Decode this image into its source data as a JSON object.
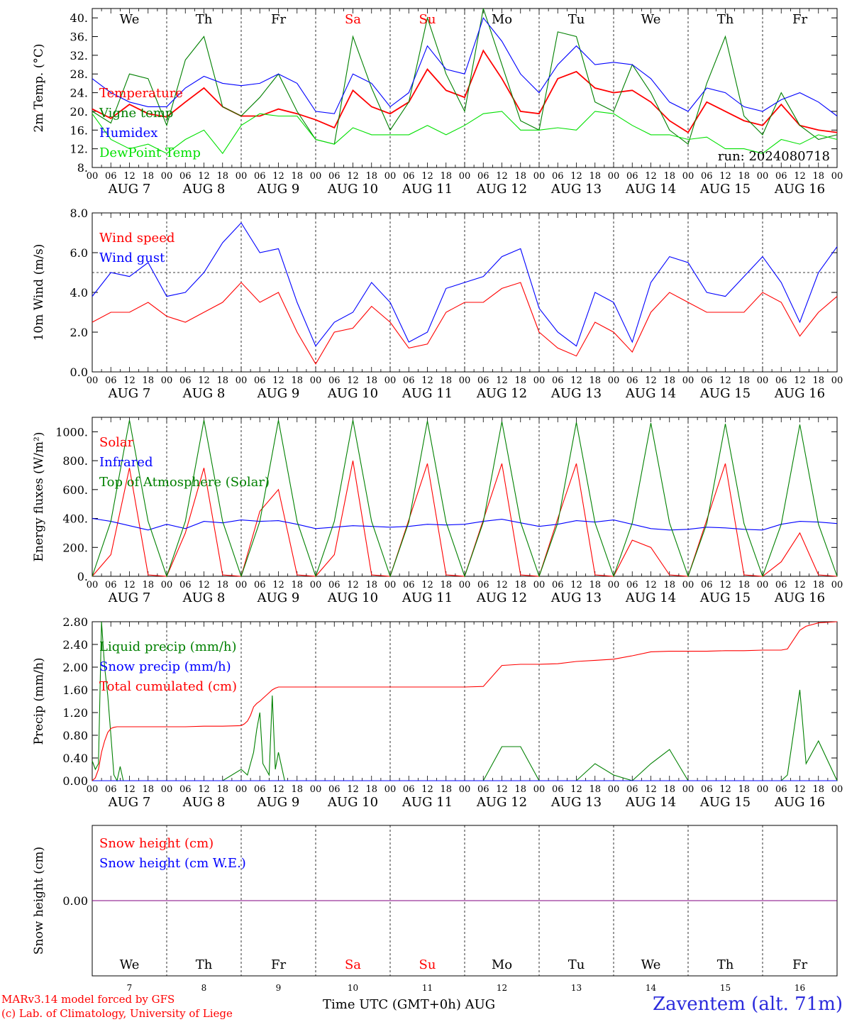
{
  "colors": {
    "red": "#ff0000",
    "blue": "#0000ff",
    "green": "#008000",
    "lightgreen": "#00e000",
    "purple": "#800080",
    "black": "#000000",
    "weekend": "#ff0000"
  },
  "days": [
    {
      "weekday": "We",
      "date": "AUG  7",
      "num": "7",
      "weekend": false
    },
    {
      "weekday": "Th",
      "date": "AUG  8",
      "num": "8",
      "weekend": false
    },
    {
      "weekday": "Fr",
      "date": "AUG  9",
      "num": "9",
      "weekend": false
    },
    {
      "weekday": "Sa",
      "date": "AUG 10",
      "num": "10",
      "weekend": true
    },
    {
      "weekday": "Su",
      "date": "AUG 11",
      "num": "11",
      "weekend": true
    },
    {
      "weekday": "Mo",
      "date": "AUG 12",
      "num": "12",
      "weekend": false
    },
    {
      "weekday": "Tu",
      "date": "AUG 13",
      "num": "13",
      "weekend": false
    },
    {
      "weekday": "We",
      "date": "AUG 14",
      "num": "14",
      "weekend": false
    },
    {
      "weekday": "Th",
      "date": "AUG 15",
      "num": "15",
      "weekend": false
    },
    {
      "weekday": "Fr",
      "date": "AUG 16",
      "num": "16",
      "weekend": false
    }
  ],
  "hour_ticks": [
    "00",
    "06",
    "12",
    "18"
  ],
  "hour_end": "00",
  "footer": {
    "credit_line1": "MARv3.14 model forced by GFS",
    "credit_line2": "(c) Lab. of Climatology, University of Liege",
    "xlabel": "Time UTC (GMT+0h) AUG",
    "station": "Zaventem (alt. 71m)"
  },
  "chart_data": [
    {
      "id": "temperature",
      "type": "line",
      "ylabel": "2m Temp. (°C)",
      "ylim": [
        8,
        42
      ],
      "yticks": [
        "8.",
        "12.",
        "16.",
        "20.",
        "24.",
        "28.",
        "32.",
        "36.",
        "40."
      ],
      "ytick_values": [
        8,
        12,
        16,
        20,
        24,
        28,
        32,
        36,
        40
      ],
      "annotation": "run: 2024080718",
      "legend": [
        "Temperature",
        "Vigne temp",
        "Humidex",
        "DewPoint Temp"
      ],
      "x_hours": [
        0,
        6,
        12,
        18,
        24,
        30,
        36,
        42,
        48,
        54,
        60,
        66,
        72,
        78,
        84,
        90,
        96,
        102,
        108,
        114,
        120,
        126,
        132,
        138,
        144,
        150,
        156,
        162,
        168,
        174,
        180,
        186,
        192,
        198,
        204,
        210,
        216,
        222,
        228,
        234,
        240
      ],
      "series": [
        {
          "name": "Temperature",
          "color": "#ff0000",
          "values": [
            20.5,
            18.5,
            21.5,
            19.5,
            18.8,
            22,
            25,
            21,
            19,
            19,
            20.5,
            19.5,
            18.2,
            16.5,
            24.5,
            21,
            19.5,
            22,
            29,
            24.5,
            23,
            33,
            27,
            20,
            19.5,
            27,
            28.5,
            25,
            24,
            24.5,
            22,
            18,
            15.5,
            22,
            20,
            18,
            17,
            21.5,
            17,
            16,
            15.5
          ]
        },
        {
          "name": "Vigne temp",
          "color": "#008000",
          "values": [
            20,
            17.5,
            28,
            27,
            17,
            31,
            36,
            21,
            19,
            23,
            28,
            20,
            14,
            13,
            36,
            25,
            16,
            22,
            40,
            28,
            20,
            42,
            30,
            18,
            16,
            37,
            36,
            22,
            20,
            30,
            24,
            16,
            13,
            26,
            36,
            19,
            15,
            24,
            17,
            14,
            15
          ]
        },
        {
          "name": "Humidex",
          "color": "#0000ff",
          "values": [
            27,
            24,
            22,
            21,
            21,
            25,
            27.5,
            26,
            25.5,
            26,
            28,
            26,
            20,
            19.5,
            28,
            26,
            21,
            24,
            34,
            29,
            28,
            40,
            35,
            28,
            24,
            30,
            34,
            30,
            30.5,
            30,
            27,
            22,
            20,
            25,
            24,
            21,
            20,
            22.5,
            24,
            22,
            19
          ]
        },
        {
          "name": "DewPoint Temp",
          "color": "#00e000",
          "values": [
            19.5,
            14,
            12,
            13,
            11,
            14,
            16,
            11,
            17,
            19.5,
            19,
            19,
            14,
            13,
            16.5,
            15,
            15,
            15,
            17,
            15,
            17,
            19.5,
            20,
            16,
            16,
            16.5,
            16,
            20,
            19.5,
            17,
            15,
            15,
            14,
            14.5,
            12,
            12,
            11,
            14,
            13,
            15,
            14
          ]
        }
      ]
    },
    {
      "id": "wind",
      "type": "line",
      "ylabel": "10m Wind (m/s)",
      "ylim": [
        0,
        8
      ],
      "yticks": [
        "0.0",
        "2.0",
        "4.0",
        "6.0",
        "8.0"
      ],
      "ytick_values": [
        0,
        2,
        4,
        6,
        8
      ],
      "reference_line": 5,
      "legend": [
        "Wind speed",
        "Wind gust"
      ],
      "x_hours": [
        0,
        6,
        12,
        18,
        24,
        30,
        36,
        42,
        48,
        54,
        60,
        66,
        72,
        78,
        84,
        90,
        96,
        102,
        108,
        114,
        120,
        126,
        132,
        138,
        144,
        150,
        156,
        162,
        168,
        174,
        180,
        186,
        192,
        198,
        204,
        210,
        216,
        222,
        228,
        234,
        240
      ],
      "series": [
        {
          "name": "Wind speed",
          "color": "#ff0000",
          "values": [
            2.5,
            3,
            3,
            3.5,
            2.8,
            2.5,
            3,
            3.5,
            4.5,
            3.5,
            4,
            2,
            0.4,
            2,
            2.2,
            3.3,
            2.5,
            1.2,
            1.4,
            3,
            3.5,
            3.5,
            4.2,
            4.5,
            2,
            1.2,
            0.8,
            2.5,
            2,
            1,
            3,
            4,
            3.5,
            3,
            3,
            3,
            4,
            3.5,
            1.8,
            3,
            3.8
          ]
        },
        {
          "name": "Wind gust",
          "color": "#0000ff",
          "values": [
            3.8,
            5,
            4.8,
            5.5,
            3.8,
            4,
            5,
            6.5,
            7.5,
            6,
            6.2,
            3.5,
            1.3,
            2.5,
            3,
            4.5,
            3.5,
            1.5,
            2,
            4.2,
            4.5,
            4.8,
            5.8,
            6.2,
            3.2,
            2,
            1.3,
            4,
            3.5,
            1.5,
            4.5,
            5.8,
            5.5,
            4,
            3.8,
            4.8,
            5.8,
            4.5,
            2.5,
            5,
            6.3
          ]
        }
      ]
    },
    {
      "id": "energy",
      "type": "line",
      "ylabel": "Energy fluxes (W/m²)",
      "ylim": [
        0,
        1100
      ],
      "yticks": [
        "0.",
        "200.",
        "400.",
        "600.",
        "800.",
        "1000."
      ],
      "ytick_values": [
        0,
        200,
        400,
        600,
        800,
        1000
      ],
      "legend": [
        "Solar",
        "Infrared",
        "Top of Atmosphere (Solar)"
      ],
      "x_hours": [
        0,
        6,
        12,
        18,
        24,
        30,
        36,
        42,
        48,
        54,
        60,
        66,
        72,
        78,
        84,
        90,
        96,
        102,
        108,
        114,
        120,
        126,
        132,
        138,
        144,
        150,
        156,
        162,
        168,
        174,
        180,
        186,
        192,
        198,
        204,
        210,
        216,
        222,
        228,
        234,
        240
      ],
      "series": [
        {
          "name": "Solar",
          "color": "#ff0000",
          "values": [
            0,
            150,
            750,
            10,
            0,
            300,
            750,
            10,
            0,
            450,
            600,
            10,
            0,
            150,
            800,
            10,
            0,
            390,
            780,
            10,
            0,
            390,
            780,
            10,
            0,
            400,
            780,
            10,
            0,
            250,
            200,
            10,
            0,
            390,
            780,
            10,
            0,
            100,
            300,
            10,
            0
          ]
        },
        {
          "name": "Infrared",
          "color": "#0000ff",
          "values": [
            400,
            380,
            350,
            320,
            360,
            330,
            380,
            370,
            390,
            380,
            385,
            360,
            330,
            340,
            350,
            345,
            340,
            345,
            360,
            355,
            360,
            380,
            395,
            370,
            345,
            360,
            385,
            375,
            390,
            360,
            330,
            320,
            325,
            340,
            335,
            325,
            320,
            360,
            380,
            375,
            365
          ]
        },
        {
          "name": "Top of Atmosphere (Solar)",
          "color": "#008000",
          "values": [
            0,
            380,
            1080,
            380,
            0,
            380,
            1080,
            380,
            0,
            380,
            1080,
            380,
            0,
            380,
            1080,
            380,
            0,
            375,
            1075,
            375,
            0,
            375,
            1070,
            375,
            0,
            370,
            1065,
            370,
            0,
            370,
            1060,
            370,
            0,
            365,
            1055,
            365,
            0,
            360,
            1050,
            360,
            0
          ]
        }
      ]
    },
    {
      "id": "precip",
      "type": "line",
      "ylabel": "Precip (mm/h)",
      "ylim": [
        0,
        2.8
      ],
      "yticks": [
        "0.00",
        "0.40",
        "0.80",
        "1.20",
        "1.60",
        "2.00",
        "2.40",
        "2.80"
      ],
      "ytick_values": [
        0,
        0.4,
        0.8,
        1.2,
        1.6,
        2.0,
        2.4,
        2.8
      ],
      "legend": [
        "Liquid precip (mm/h)",
        "Snow precip (mm/h)",
        "Total cumulated (cm)"
      ],
      "x_hours": [
        0,
        1,
        2,
        3,
        4,
        5,
        6,
        7,
        8,
        9,
        10,
        12,
        18,
        24,
        30,
        36,
        42,
        48,
        49,
        50,
        51,
        52,
        53,
        54,
        55,
        56,
        57,
        58,
        59,
        60,
        62,
        66,
        72,
        96,
        120,
        126,
        132,
        138,
        144,
        150,
        156,
        162,
        168,
        174,
        180,
        186,
        192,
        198,
        204,
        210,
        216,
        222,
        224,
        228,
        230,
        234,
        240
      ],
      "series": [
        {
          "name": "Liquid precip (mm/h)",
          "color": "#008000",
          "values": [
            0.35,
            0.2,
            0.3,
            2.8,
            2.0,
            1.5,
            0.8,
            0.1,
            0.0,
            0.25,
            0.0,
            0.0,
            0.0,
            0.0,
            0.0,
            0.0,
            0.0,
            0.2,
            0.15,
            0.1,
            0.3,
            0.5,
            0.9,
            1.2,
            0.3,
            0.2,
            0.1,
            1.5,
            0.2,
            0.5,
            0.0,
            0.0,
            0.0,
            0.0,
            0.0,
            0.0,
            0.6,
            0.6,
            0.0,
            0.0,
            0.0,
            0.3,
            0.1,
            0.0,
            0.3,
            0.55,
            0.0,
            0.0,
            0.0,
            0.0,
            0.0,
            0.0,
            0.1,
            1.6,
            0.3,
            0.7,
            0.0
          ]
        },
        {
          "name": "Snow precip (mm/h)",
          "color": "#0000ff",
          "values": [
            0,
            0,
            0,
            0,
            0,
            0,
            0,
            0,
            0,
            0,
            0,
            0,
            0,
            0,
            0,
            0,
            0,
            0,
            0,
            0,
            0,
            0,
            0,
            0,
            0,
            0,
            0,
            0,
            0,
            0,
            0,
            0,
            0,
            0,
            0,
            0,
            0,
            0,
            0,
            0,
            0,
            0,
            0,
            0,
            0,
            0,
            0,
            0,
            0,
            0,
            0,
            0,
            0,
            0,
            0,
            0,
            0
          ]
        },
        {
          "name": "Total cumulated (cm)",
          "color": "#ff0000",
          "values": [
            0.0,
            0.05,
            0.2,
            0.5,
            0.7,
            0.85,
            0.92,
            0.94,
            0.95,
            0.95,
            0.95,
            0.95,
            0.95,
            0.95,
            0.95,
            0.96,
            0.96,
            0.97,
            1.0,
            1.05,
            1.15,
            1.3,
            1.36,
            1.4,
            1.45,
            1.5,
            1.55,
            1.6,
            1.63,
            1.65,
            1.65,
            1.65,
            1.65,
            1.65,
            1.65,
            1.66,
            2.03,
            2.05,
            2.05,
            2.06,
            2.1,
            2.12,
            2.14,
            2.2,
            2.27,
            2.28,
            2.28,
            2.28,
            2.29,
            2.29,
            2.3,
            2.3,
            2.32,
            2.65,
            2.72,
            2.78,
            2.8
          ]
        }
      ]
    },
    {
      "id": "snow",
      "type": "line",
      "ylabel": "Snow height (cm)",
      "ylim": [
        -1,
        1
      ],
      "yticks": [
        "0.00"
      ],
      "ytick_values": [
        0
      ],
      "legend": [
        "Snow height (cm)",
        "Snow height (cm W.E.)"
      ],
      "x_hours": [
        0,
        240
      ],
      "series": [
        {
          "name": "Snow height (cm)",
          "color": "#800080",
          "values": [
            0,
            0
          ]
        },
        {
          "name": "Snow height (cm W.E.)",
          "color": "#800080",
          "values": [
            0,
            0
          ]
        }
      ]
    }
  ]
}
